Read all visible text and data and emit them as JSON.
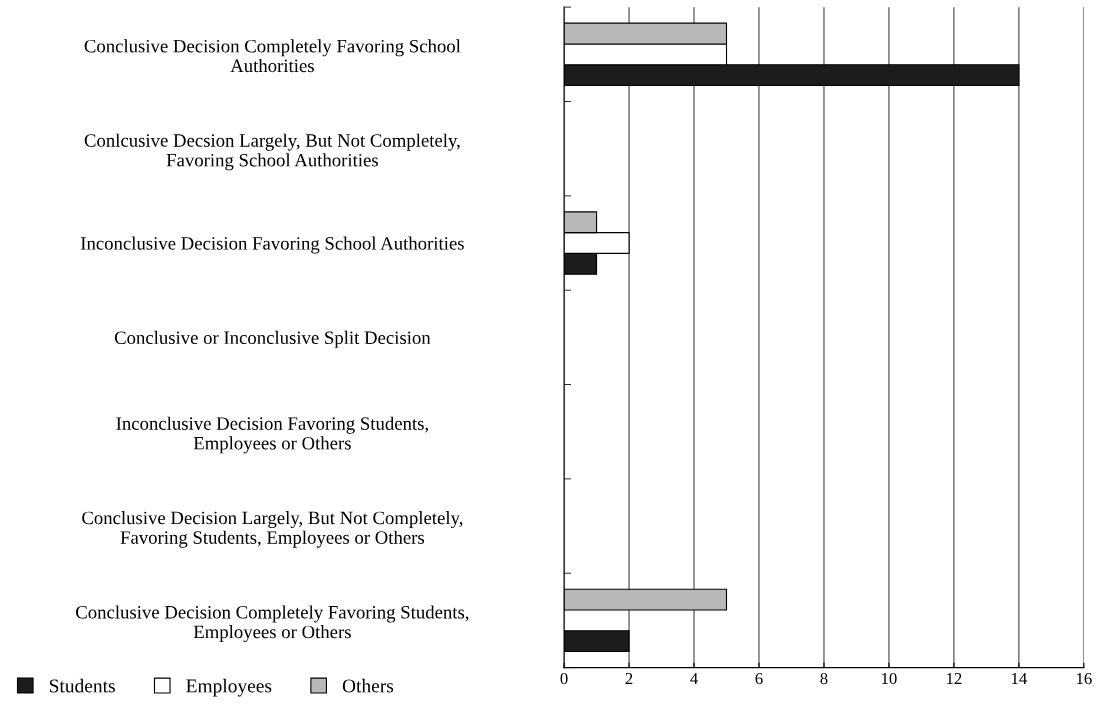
{
  "chart_data": {
    "type": "bar",
    "orientation": "horizontal",
    "categories": [
      "Conclusive Decision Completely Favoring School\nAuthorities",
      "Conlcusive Decsion Largely, But Not Completely,\nFavoring School Authorities",
      "Inconclusive Decision Favoring School Authorities",
      "Conclusive or Inconclusive Split Decision",
      "Inconclusive Decision Favoring Students,\nEmployees or Others",
      "Conclusive Decision Largely, But Not Completely,\nFavoring Students, Employees or Others",
      "Conclusive Decision Completely Favoring Students,\nEmployees or Others"
    ],
    "series": [
      {
        "name": "Students",
        "color": "#1c1c1c",
        "values": [
          14,
          0,
          1,
          0,
          0,
          0,
          2
        ]
      },
      {
        "name": "Employees",
        "color": "#ffffff",
        "values": [
          5,
          0,
          2,
          0,
          0,
          0,
          0
        ]
      },
      {
        "name": "Others",
        "color": "#b8b8b8",
        "values": [
          5,
          0,
          1,
          0,
          0,
          0,
          5
        ]
      }
    ],
    "xlim": [
      0,
      16
    ],
    "xticks": [
      0,
      2,
      4,
      6,
      8,
      10,
      12,
      14,
      16
    ],
    "grid": "x",
    "legend": "bottom left"
  }
}
